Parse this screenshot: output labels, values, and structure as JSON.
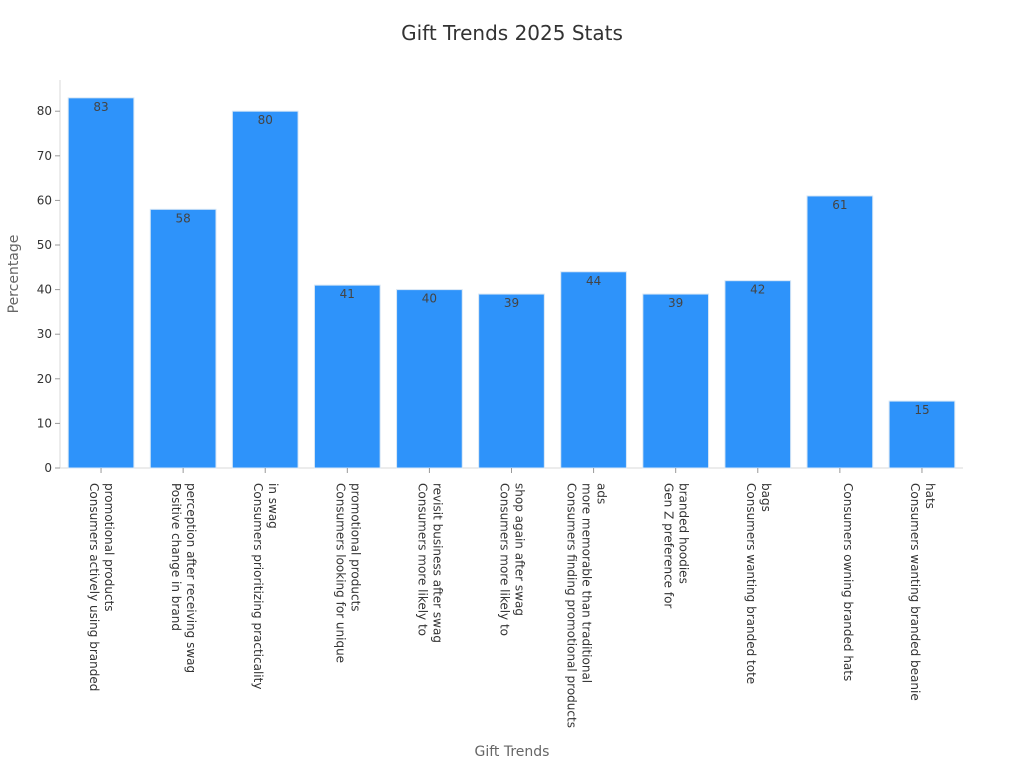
{
  "chart_data": {
    "type": "bar",
    "title": "Gift Trends 2025 Stats",
    "xlabel": "Gift Trends",
    "ylabel": "Percentage",
    "ylim": [
      0,
      87
    ],
    "yticks": [
      0,
      10,
      20,
      30,
      40,
      50,
      60,
      70,
      80
    ],
    "grid": false,
    "categories": [
      [
        "Consumers actively using branded",
        "promotional products"
      ],
      [
        "Positive change in brand",
        "perception after receiving swag"
      ],
      [
        "Consumers prioritizing practicality",
        "in swag"
      ],
      [
        "Consumers looking for unique",
        "promotional products"
      ],
      [
        "Consumers more likely to",
        "revisit business after swag"
      ],
      [
        "Consumers more likely to",
        "shop again after swag"
      ],
      [
        "Consumers finding promotional products",
        "more memorable than traditional",
        "ads"
      ],
      [
        "Gen Z preference for",
        "branded hoodies"
      ],
      [
        "Consumers wanting branded tote",
        "bags"
      ],
      [
        "Consumers owning branded hats"
      ],
      [
        "Consumers wanting branded beanie",
        "hats"
      ]
    ],
    "values": [
      83,
      58,
      80,
      41,
      40,
      39,
      44,
      39,
      42,
      61,
      15
    ],
    "bar_color": "#2e93fa"
  }
}
